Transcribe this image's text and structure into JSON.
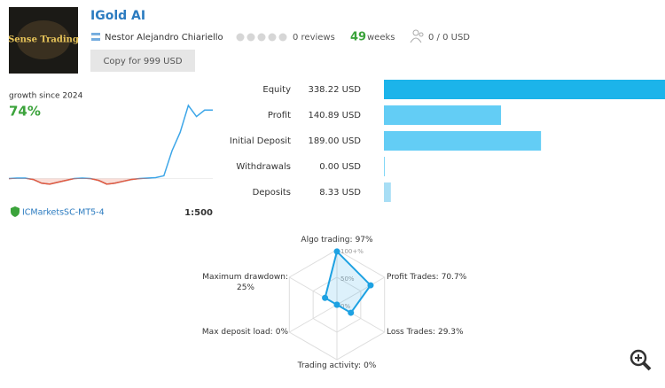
{
  "header": {
    "logo_text": "Sense Trading",
    "title": "IGold AI",
    "author": "Nestor Alejandro Chiariello",
    "reviews": "0 reviews",
    "weeks_value": "49",
    "weeks_unit": "weeks",
    "subscribers": "0 / 0 USD",
    "button": "Copy for 999 USD"
  },
  "growth_chart": {
    "type": "line",
    "label": "growth since 2024",
    "value": "74%",
    "values": [
      0,
      0.5,
      0.5,
      -1,
      -5,
      -6,
      -4,
      -2,
      0,
      0.5,
      0,
      -2,
      -6,
      -5,
      -3,
      -1,
      0,
      0.5,
      1,
      3,
      30,
      50,
      79,
      67,
      74,
      74
    ],
    "ylim": [
      -10,
      80
    ],
    "color": "#3da6e8",
    "negative_color": "#e8593c"
  },
  "account": {
    "broker": "ICMarketsSC-MT5-4",
    "leverage": "1:500"
  },
  "balance_chart": {
    "type": "bar",
    "categories": [
      "Equity",
      "Profit",
      "Initial Deposit",
      "Withdrawals",
      "Deposits"
    ],
    "values": [
      338.22,
      140.89,
      189.0,
      0.0,
      8.33
    ],
    "value_labels": [
      "338.22 USD",
      "140.89 USD",
      "189.00 USD",
      "0.00 USD",
      "8.33 USD"
    ],
    "colors": [
      "#1cb4ea",
      "#63cdf5",
      "#63cdf5",
      "#63cdf5",
      "#a8def5"
    ],
    "xlim": [
      0,
      338.22
    ]
  },
  "radar_chart": {
    "type": "radar",
    "categories": [
      "Algo trading:",
      "Profit Trades:",
      "Loss Trades:",
      "Trading activity:",
      "Max deposit load:",
      "Maximum drawdown:"
    ],
    "values": [
      97,
      70.7,
      29.3,
      0,
      0,
      25
    ],
    "value_labels": [
      "97%",
      "70.7%",
      "29.3%",
      "0%",
      "0%",
      "25%"
    ],
    "rlim": [
      0,
      100
    ],
    "rticks": [
      {
        "value": 0,
        "label": "0%"
      },
      {
        "value": 50,
        "label": "50%"
      },
      {
        "value": 100,
        "label": "100+%"
      }
    ],
    "color": "#1da1e2"
  }
}
